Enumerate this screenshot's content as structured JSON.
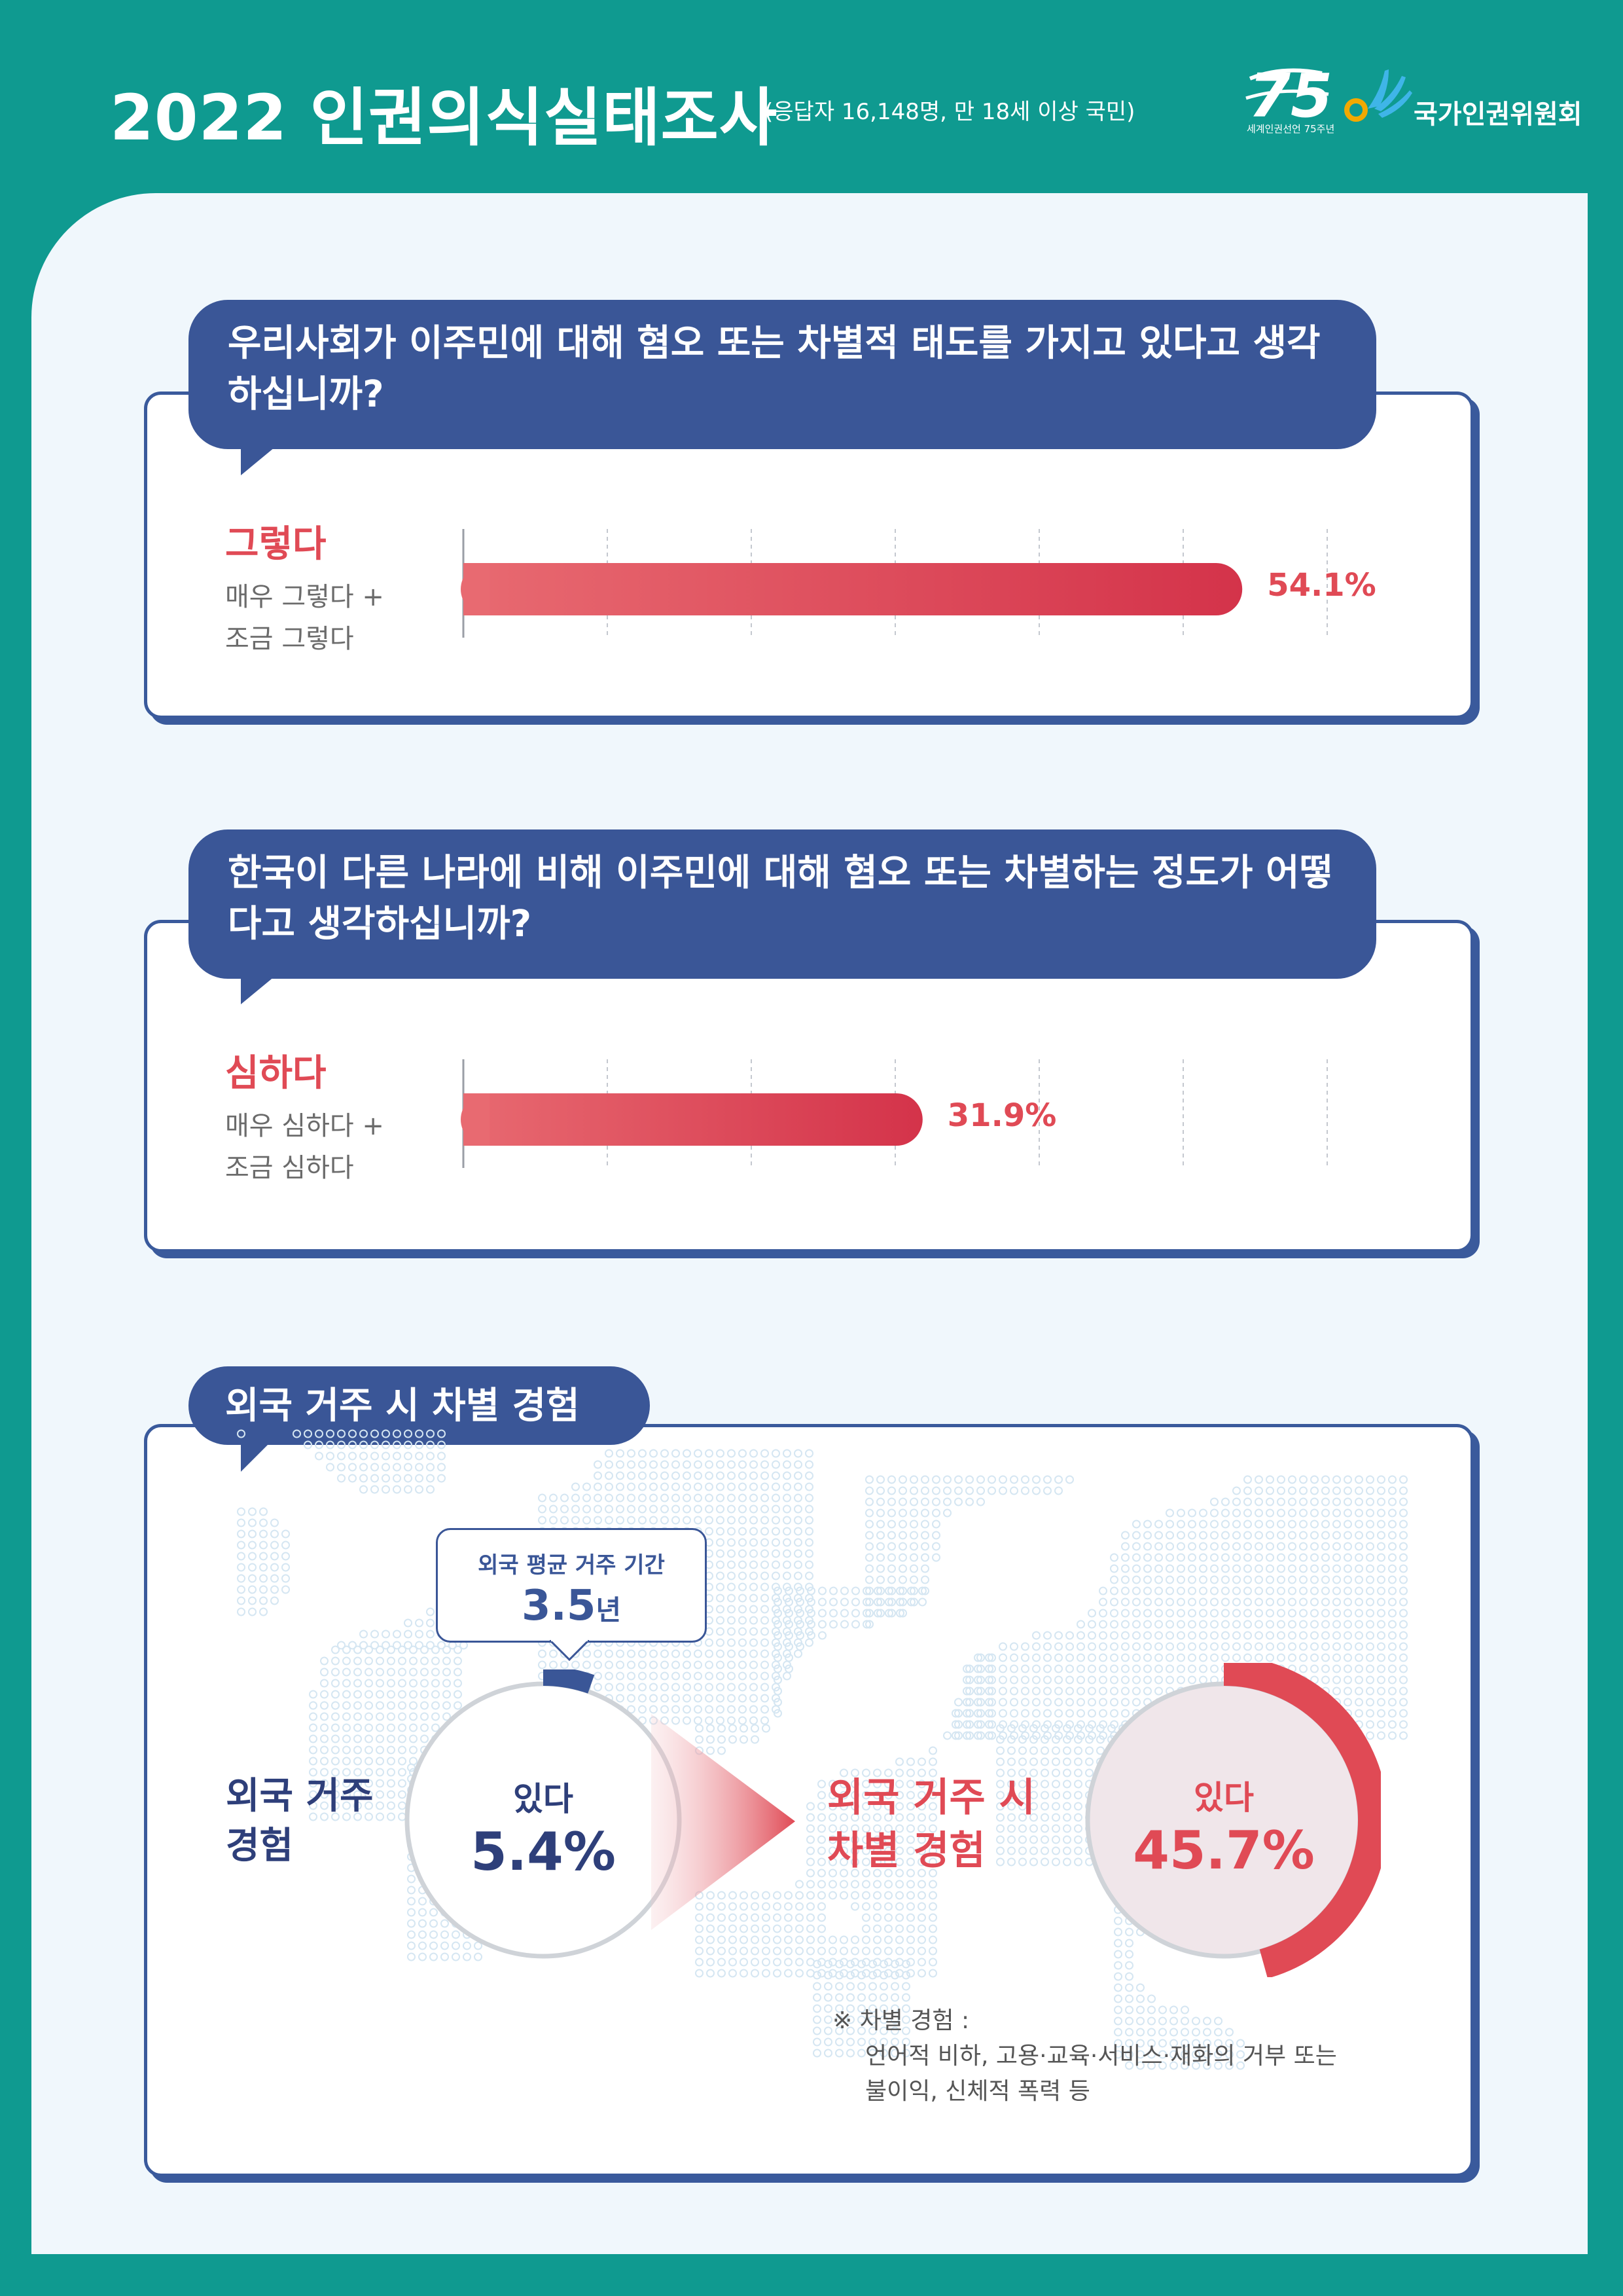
{
  "header": {
    "title": "2022 인권의식실태조사",
    "subtitle": "(응답자 16,148명, 만 18세 이상 국민)",
    "anniv_logo_number": "75",
    "anniv_logo_caption": "세계인권선언 75주년",
    "org_name": "국가인권위원회"
  },
  "colors": {
    "teal": "#0f9a90",
    "navy": "#3a5697",
    "red": "#e04a55",
    "sheet": "#f0f7fc"
  },
  "question1": {
    "text": "우리사회가 이주민에 대해 혐오 또는 차별적 태도를 가지고 있다고 생각하십니까?",
    "label": "그렇다",
    "sub1": "매우 그렇다 +",
    "sub2": "조금 그렇다",
    "value_text": "54.1%"
  },
  "question2": {
    "text": "한국이 다른 나라에 비해 이주민에 대해 혐오 또는 차별하는 정도가 어떻다고 생각하십니까?",
    "label": "심하다",
    "sub1": "매우 심하다 +",
    "sub2": "조금 심하다",
    "value_text": "31.9%"
  },
  "section3": {
    "title": "외국 거주 시 차별 경험",
    "tip_label": "외국 평균 거주 기간",
    "tip_value": "3.5",
    "tip_unit": "년",
    "left_title_line1": "외국 거주",
    "left_title_line2": "경험",
    "left_label": "있다",
    "left_value": "5.4%",
    "right_title_line1": "외국 거주 시",
    "right_title_line2": "차별 경험",
    "right_label": "있다",
    "right_value": "45.7%",
    "note_line1": "※ 차별 경험 :",
    "note_line2": "언어적 비하, 고용·교육·서비스·재화의 거부 또는",
    "note_line3": "불이익, 신체적 폭력 등"
  },
  "chart_data": [
    {
      "type": "bar",
      "categories": [
        "그렇다"
      ],
      "values": [
        54.1
      ],
      "ylim": [
        0,
        60
      ]
    },
    {
      "type": "bar",
      "categories": [
        "심하다"
      ],
      "values": [
        31.9
      ],
      "ylim": [
        0,
        60
      ]
    },
    {
      "type": "pie",
      "categories": [
        "있다"
      ],
      "values": [
        5.4
      ]
    },
    {
      "type": "pie",
      "categories": [
        "있다"
      ],
      "values": [
        45.7
      ]
    }
  ]
}
